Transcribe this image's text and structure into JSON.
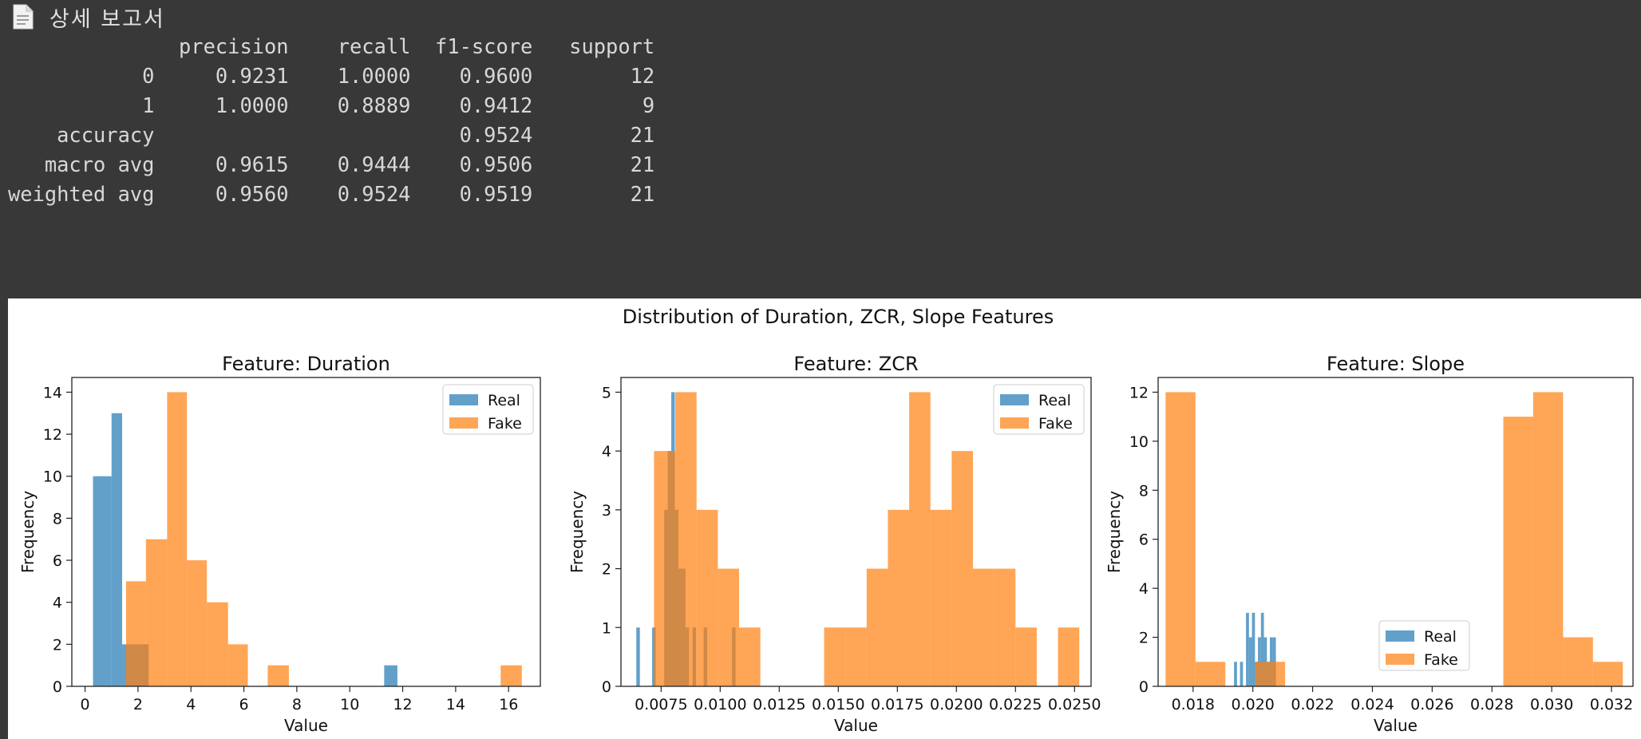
{
  "report": {
    "title": "상세 보고서",
    "icon": "document-icon",
    "lines": [
      "              precision    recall  f1-score   support",
      "",
      "           0     0.9231    1.0000    0.9600        12",
      "           1     1.0000    0.8889    0.9412         9",
      "",
      "    accuracy                         0.9524        21",
      "   macro avg     0.9615    0.9444    0.9506        21",
      "weighted avg     0.9560    0.9524    0.9519        21"
    ]
  },
  "figure": {
    "suptitle": "Distribution of Duration, ZCR, Slope Features",
    "colors": {
      "Real": "#1f77b4",
      "Fake": "#ff7f0e"
    }
  },
  "chart_data": [
    {
      "type": "bar",
      "title": "Feature: Duration",
      "xlabel": "Value",
      "ylabel": "Frequency",
      "xlim": [
        -0.5,
        17.2
      ],
      "ylim": [
        0,
        14.7
      ],
      "xticks": [
        0,
        2,
        4,
        6,
        8,
        10,
        12,
        14,
        16
      ],
      "xtick_labels": [
        "0",
        "2",
        "4",
        "6",
        "8",
        "10",
        "12",
        "14",
        "16"
      ],
      "yticks": [
        0,
        2,
        4,
        6,
        8,
        10,
        12,
        14
      ],
      "legend": "top-right",
      "series": [
        {
          "name": "Real",
          "bins": [
            [
              0.3,
              1.0,
              10
            ],
            [
              1.0,
              1.4,
              13
            ],
            [
              1.4,
              1.7,
              2
            ],
            [
              1.7,
              2.4,
              2
            ],
            [
              11.3,
              11.8,
              1
            ]
          ]
        },
        {
          "name": "Fake",
          "bins": [
            [
              1.55,
              2.3,
              5
            ],
            [
              2.3,
              3.1,
              7
            ],
            [
              3.1,
              3.85,
              14
            ],
            [
              3.85,
              4.6,
              6
            ],
            [
              4.6,
              5.4,
              4
            ],
            [
              5.4,
              6.15,
              2
            ],
            [
              6.9,
              7.7,
              1
            ],
            [
              15.7,
              16.5,
              1
            ]
          ]
        }
      ]
    },
    {
      "type": "bar",
      "title": "Feature: ZCR",
      "xlabel": "Value",
      "ylabel": "Frequency",
      "xlim": [
        0.0058,
        0.0257
      ],
      "ylim": [
        0,
        5.25
      ],
      "xticks": [
        0.0075,
        0.01,
        0.0125,
        0.015,
        0.0175,
        0.02,
        0.0225,
        0.025
      ],
      "xtick_labels": [
        "0.0075",
        "0.0100",
        "0.0125",
        "0.0150",
        "0.0175",
        "0.0200",
        "0.0225",
        "0.0250"
      ],
      "yticks": [
        0,
        1,
        2,
        3,
        4,
        5
      ],
      "legend": "top-right",
      "series": [
        {
          "name": "Real",
          "bins": [
            [
              0.00645,
              0.0066,
              1
            ],
            [
              0.00712,
              0.00727,
              1
            ],
            [
              0.00763,
              0.00778,
              3
            ],
            [
              0.00778,
              0.00793,
              4
            ],
            [
              0.00793,
              0.00808,
              5
            ],
            [
              0.00808,
              0.00823,
              3
            ],
            [
              0.00823,
              0.00838,
              2
            ],
            [
              0.00838,
              0.00853,
              2
            ],
            [
              0.00853,
              0.00868,
              1
            ],
            [
              0.00883,
              0.00898,
              1
            ],
            [
              0.0093,
              0.00945,
              1
            ],
            [
              0.0105,
              0.01065,
              1
            ]
          ]
        },
        {
          "name": "Fake",
          "bins": [
            [
              0.0072,
              0.0081,
              4
            ],
            [
              0.0081,
              0.009,
              5
            ],
            [
              0.009,
              0.0099,
              3
            ],
            [
              0.0099,
              0.0108,
              2
            ],
            [
              0.0108,
              0.0117,
              1
            ],
            [
              0.0144,
              0.0153,
              1
            ],
            [
              0.0153,
              0.0162,
              1
            ],
            [
              0.0162,
              0.0171,
              2
            ],
            [
              0.0171,
              0.018,
              3
            ],
            [
              0.018,
              0.0189,
              5
            ],
            [
              0.0189,
              0.0198,
              3
            ],
            [
              0.0198,
              0.0207,
              4
            ],
            [
              0.0207,
              0.0216,
              2
            ],
            [
              0.0216,
              0.0225,
              2
            ],
            [
              0.0225,
              0.0234,
              1
            ],
            [
              0.0243,
              0.0252,
              1
            ]
          ]
        }
      ]
    },
    {
      "type": "bar",
      "title": "Feature: Slope",
      "xlabel": "Value",
      "ylabel": "Frequency",
      "xlim": [
        0.01683,
        0.03272
      ],
      "ylim": [
        0,
        12.6
      ],
      "xticks": [
        0.018,
        0.02,
        0.022,
        0.024,
        0.026,
        0.028,
        0.03,
        0.032
      ],
      "xtick_labels": [
        "0.018",
        "0.020",
        "0.022",
        "0.024",
        "0.026",
        "0.028",
        "0.030",
        "0.032"
      ],
      "yticks": [
        0,
        2,
        4,
        6,
        8,
        10,
        12
      ],
      "legend": "lower-center",
      "series": [
        {
          "name": "Real",
          "bins": [
            [
              0.01937,
              0.01947,
              1
            ],
            [
              0.01957,
              0.01967,
              1
            ],
            [
              0.01977,
              0.01987,
              3
            ],
            [
              0.01987,
              0.01997,
              2
            ],
            [
              0.01997,
              0.02007,
              3
            ],
            [
              0.02007,
              0.02017,
              1
            ],
            [
              0.02017,
              0.02027,
              2
            ],
            [
              0.02027,
              0.02037,
              3
            ],
            [
              0.02037,
              0.02047,
              2
            ],
            [
              0.02047,
              0.02057,
              1
            ],
            [
              0.02057,
              0.02067,
              2
            ],
            [
              0.02067,
              0.02077,
              2
            ]
          ]
        },
        {
          "name": "Fake",
          "bins": [
            [
              0.01708,
              0.01808,
              12
            ],
            [
              0.01808,
              0.01908,
              1
            ],
            [
              0.02008,
              0.02108,
              1
            ],
            [
              0.02838,
              0.02938,
              11
            ],
            [
              0.02938,
              0.03038,
              12
            ],
            [
              0.03038,
              0.03138,
              2
            ],
            [
              0.03138,
              0.03238,
              1
            ]
          ]
        }
      ]
    }
  ]
}
